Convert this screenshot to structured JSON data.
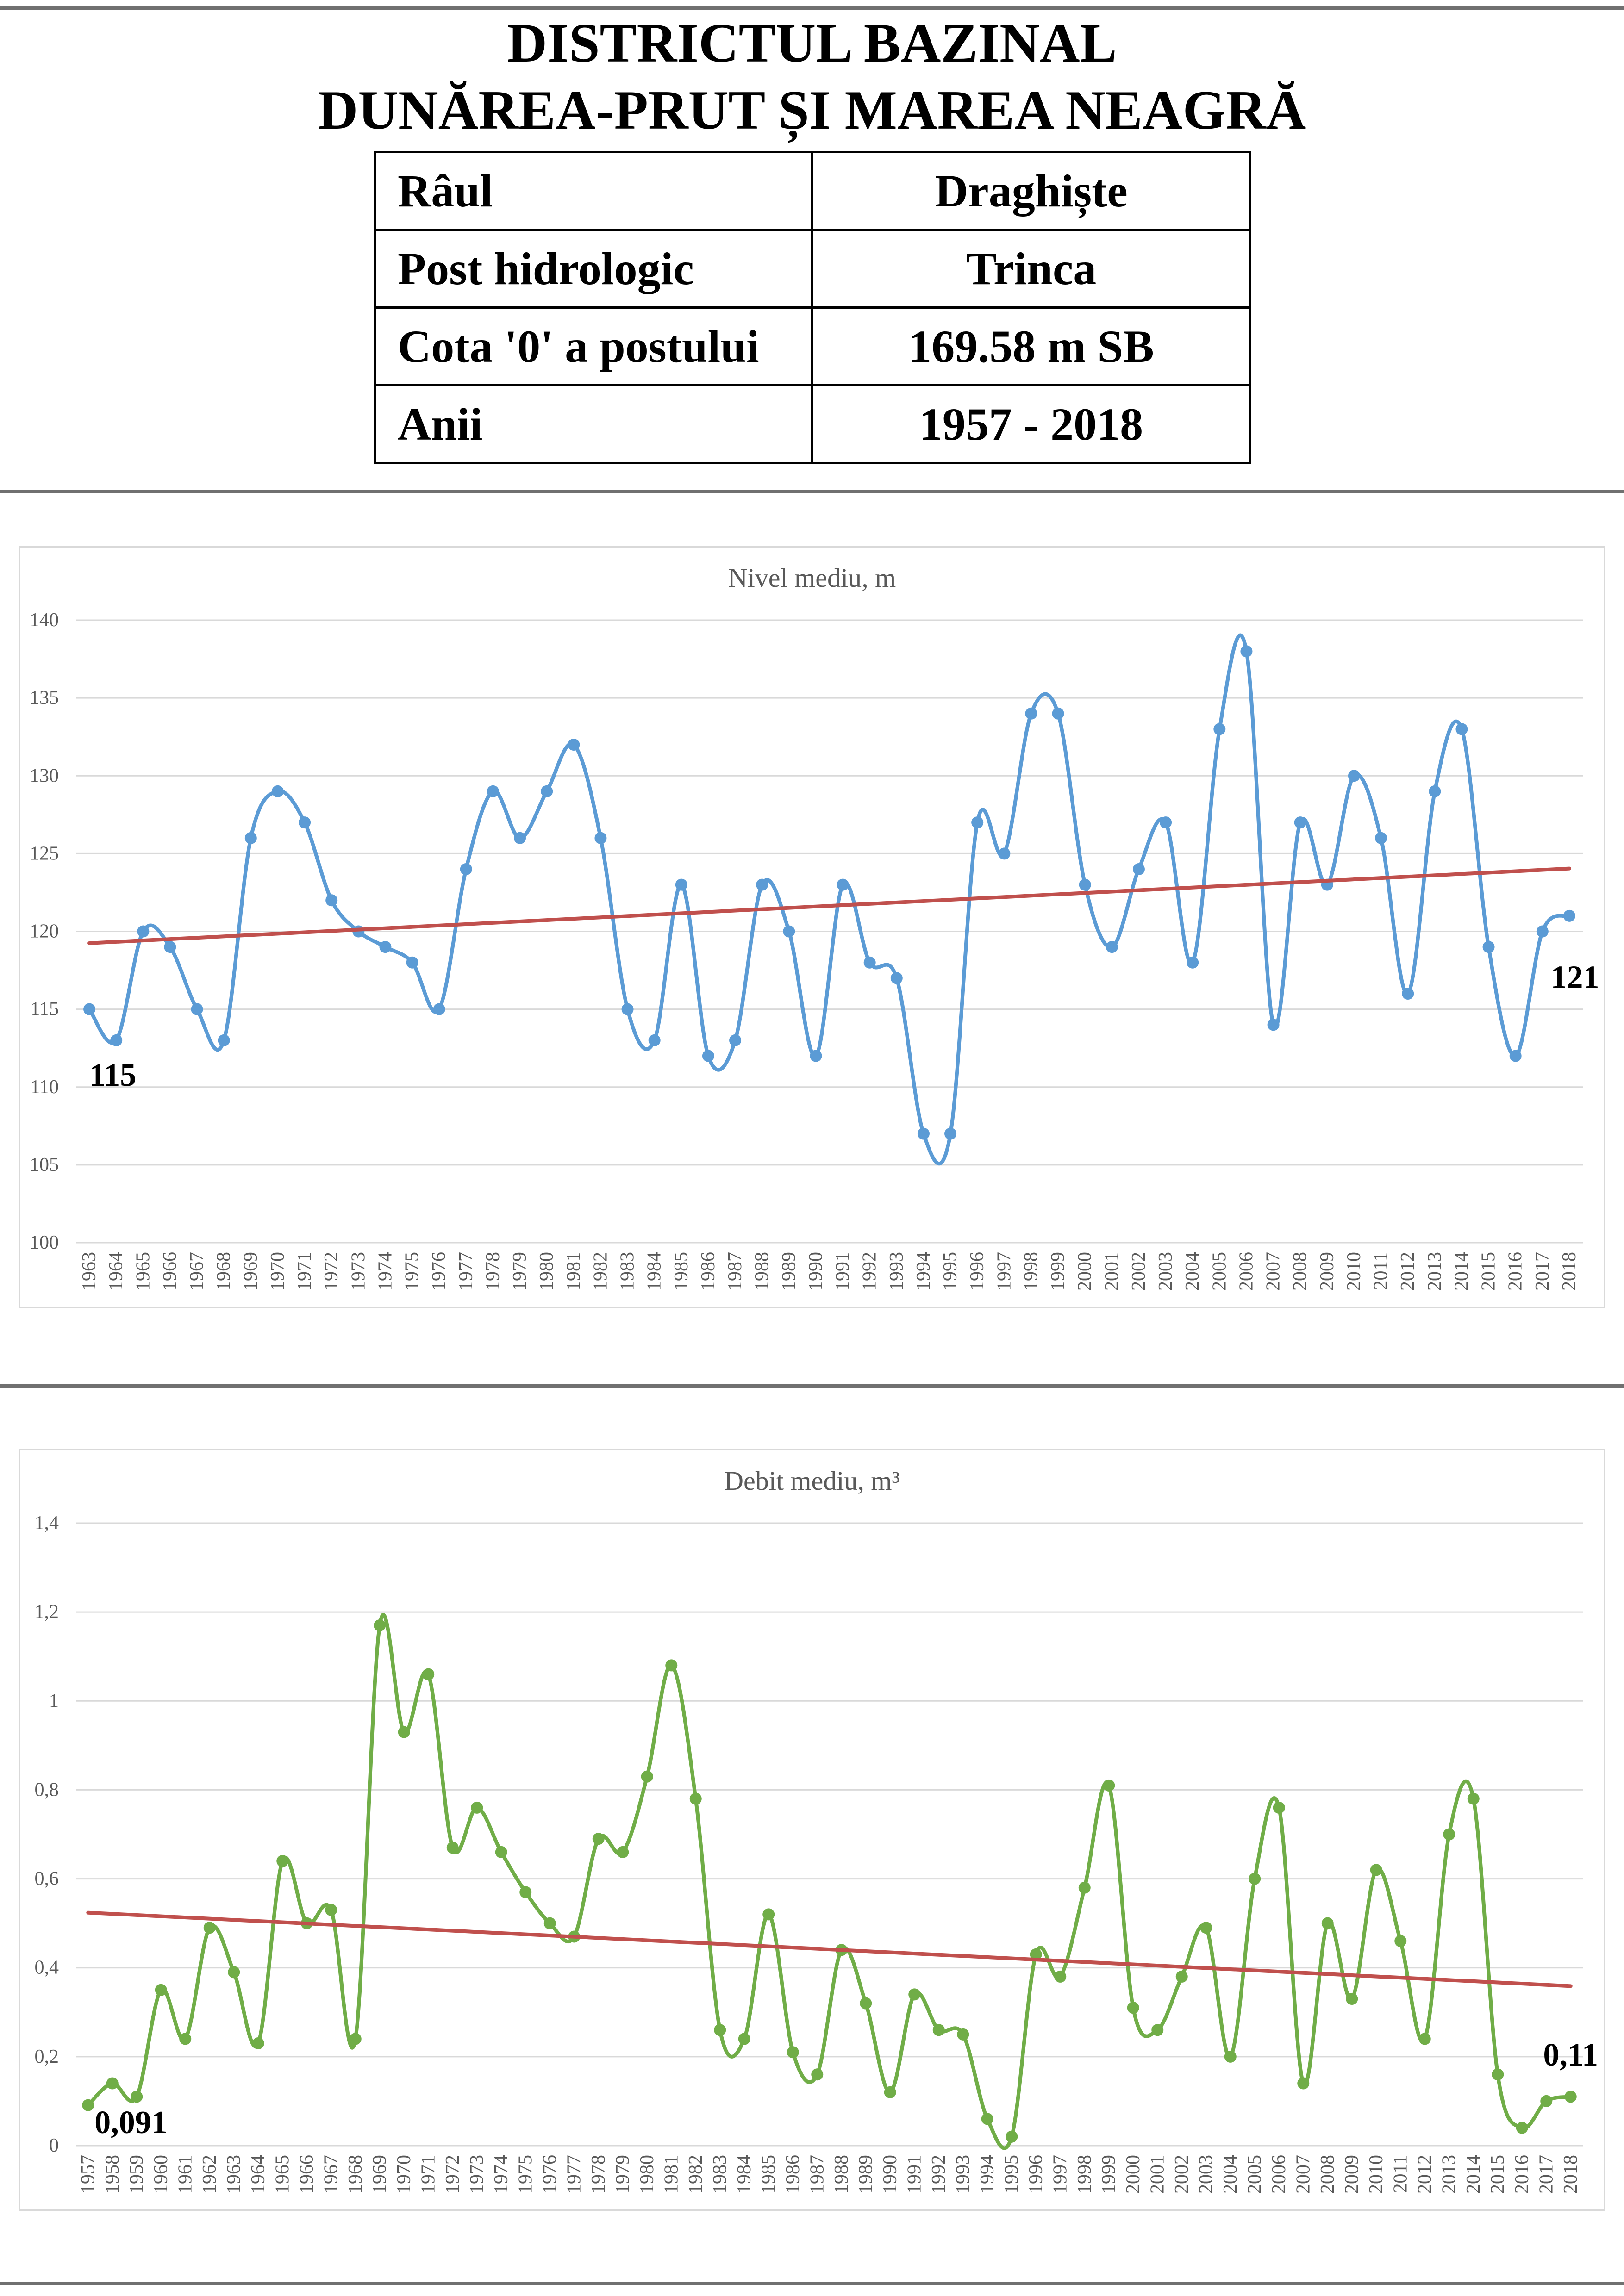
{
  "header": {
    "title_line1": "DISTRICTUL BAZINAL",
    "title_line2": "DUNĂREA-PRUT ȘI MAREA NEAGRĂ"
  },
  "info_table": [
    {
      "label": "Râul",
      "value": "Draghiște"
    },
    {
      "label": "Post hidrologic",
      "value": "Trinca"
    },
    {
      "label": "Cota '0' a postului",
      "value": "169.58 m SB"
    },
    {
      "label": "Anii",
      "value": "1957 - 2018"
    }
  ],
  "chart_data": [
    {
      "type": "line",
      "title": "Nivel mediu, m",
      "x": [
        1963,
        1964,
        1965,
        1966,
        1967,
        1968,
        1969,
        1970,
        1971,
        1972,
        1973,
        1974,
        1975,
        1976,
        1977,
        1978,
        1979,
        1980,
        1981,
        1982,
        1983,
        1984,
        1985,
        1986,
        1987,
        1988,
        1989,
        1990,
        1991,
        1992,
        1993,
        1994,
        1995,
        1996,
        1997,
        1998,
        1999,
        2000,
        2001,
        2002,
        2003,
        2004,
        2005,
        2006,
        2007,
        2008,
        2009,
        2010,
        2011,
        2012,
        2013,
        2014,
        2015,
        2016,
        2017,
        2018
      ],
      "series": [
        {
          "values": [
            115,
            113,
            120,
            119,
            115,
            113,
            126,
            129,
            127,
            122,
            120,
            119,
            118,
            115,
            124,
            129,
            126,
            129,
            132,
            126,
            115,
            113,
            123,
            112,
            113,
            123,
            120,
            112,
            123,
            118,
            117,
            107,
            107,
            127,
            125,
            134,
            134,
            123,
            119,
            124,
            127,
            118,
            133,
            138,
            114,
            127,
            123,
            130,
            126,
            116,
            129,
            133,
            119,
            112,
            120,
            121
          ],
          "color": "#5b9bd5",
          "smooth": true,
          "markers": true
        }
      ],
      "trendline": {
        "type": "linear",
        "color": "#c0504d"
      },
      "ylim": [
        100,
        140
      ],
      "yticks": [
        100,
        105,
        110,
        115,
        120,
        125,
        130,
        135,
        140
      ],
      "ytick_labels": [
        "100",
        "105",
        "110",
        "115",
        "120",
        "125",
        "130",
        "135",
        "140"
      ],
      "grid": true,
      "data_labels": [
        {
          "x": 1963,
          "text": "115",
          "position": "below-right"
        },
        {
          "x": 2018,
          "text": "121",
          "position": "below"
        }
      ]
    },
    {
      "type": "line",
      "title": "Debit mediu, m³",
      "x": [
        1957,
        1958,
        1959,
        1960,
        1961,
        1962,
        1963,
        1964,
        1965,
        1966,
        1967,
        1968,
        1969,
        1970,
        1971,
        1972,
        1973,
        1974,
        1975,
        1976,
        1977,
        1978,
        1979,
        1980,
        1981,
        1982,
        1983,
        1984,
        1985,
        1986,
        1987,
        1988,
        1989,
        1990,
        1991,
        1992,
        1993,
        1994,
        1995,
        1996,
        1997,
        1998,
        1999,
        2000,
        2001,
        2002,
        2003,
        2004,
        2005,
        2006,
        2007,
        2008,
        2009,
        2010,
        2011,
        2012,
        2013,
        2014,
        2015,
        2016,
        2017,
        2018
      ],
      "series": [
        {
          "values": [
            0.091,
            0.14,
            0.11,
            0.35,
            0.24,
            0.49,
            0.39,
            0.23,
            0.64,
            0.5,
            0.53,
            0.24,
            1.17,
            0.93,
            1.06,
            0.67,
            0.76,
            0.66,
            0.57,
            0.5,
            0.47,
            0.69,
            0.66,
            0.83,
            1.08,
            0.78,
            0.26,
            0.24,
            0.52,
            0.21,
            0.16,
            0.44,
            0.32,
            0.12,
            0.34,
            0.26,
            0.25,
            0.06,
            0.02,
            0.43,
            0.38,
            0.58,
            0.81,
            0.31,
            0.26,
            0.38,
            0.49,
            0.2,
            0.6,
            0.76,
            0.14,
            0.5,
            0.33,
            0.62,
            0.46,
            0.24,
            0.7,
            0.78,
            0.16,
            0.04,
            0.1,
            0.11
          ],
          "color": "#70ad47",
          "smooth": true,
          "markers": true
        }
      ],
      "trendline": {
        "type": "linear",
        "color": "#c0504d"
      },
      "ylim": [
        0,
        1.4
      ],
      "yticks": [
        0,
        0.2,
        0.4,
        0.6,
        0.8,
        1,
        1.2,
        1.4
      ],
      "ytick_labels": [
        "0",
        "0,2",
        "0,4",
        "0,6",
        "0,8",
        "1",
        "1,2",
        "1,4"
      ],
      "grid": true,
      "data_labels": [
        {
          "x": 1957,
          "text": "0,091",
          "position": "right"
        },
        {
          "x": 2018,
          "text": "0,11",
          "position": "above"
        }
      ]
    }
  ]
}
